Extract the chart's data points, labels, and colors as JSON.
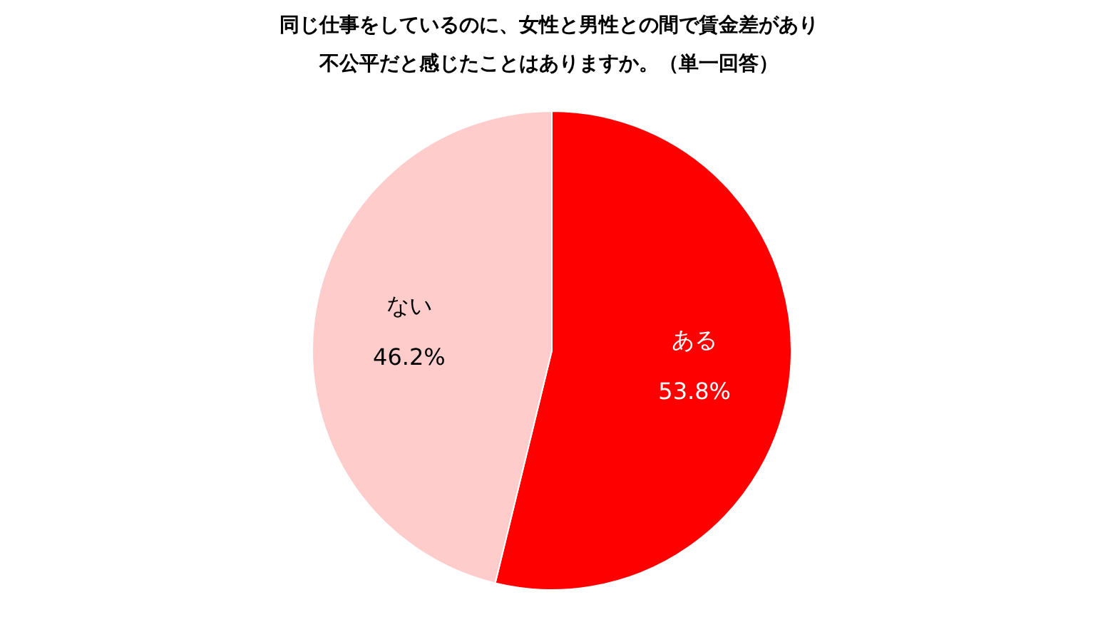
{
  "chart_data": {
    "type": "pie",
    "title": "同じ仕事をしているのに、女性と男性との間で賃金差があり不公平だと感じたことはありますか。（単一回答）",
    "categories": [
      "ある",
      "ない"
    ],
    "values": [
      53.8,
      46.2
    ],
    "value_labels": [
      "53.8%",
      "46.2%"
    ],
    "colors": [
      "#ff0000",
      "#ffcccc"
    ]
  }
}
